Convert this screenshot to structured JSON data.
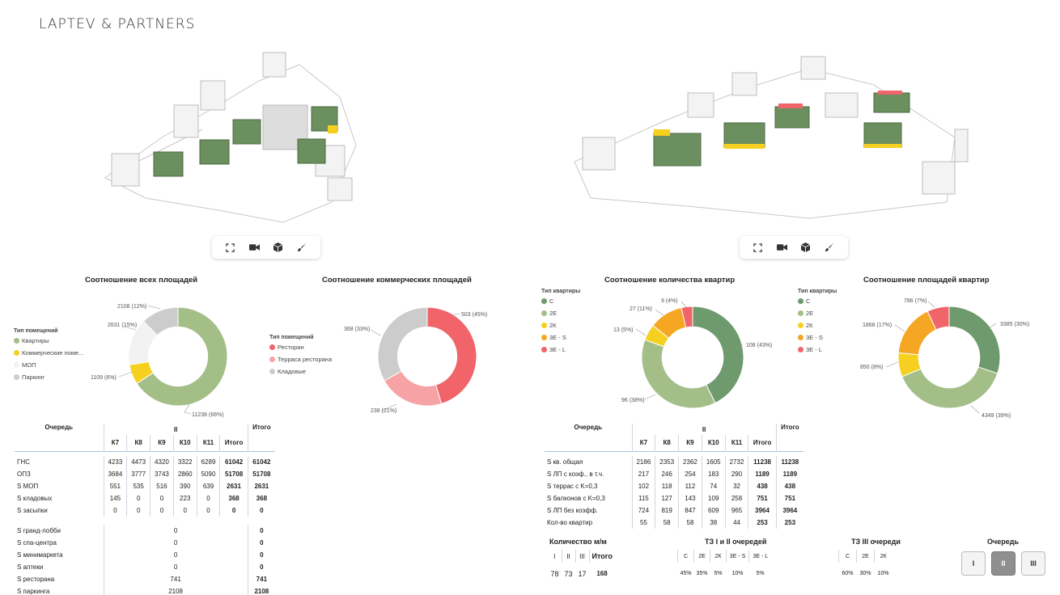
{
  "brand": {
    "logo": "LAPTEV & PARTNERS"
  },
  "colors": {
    "green_dark": "#6e9a6e",
    "green_light": "#a3bf87",
    "yellow": "#f5d020",
    "orange": "#f5a623",
    "red": "#f0646a",
    "pink": "#f7a3a6",
    "grey": "#cccccc",
    "white_grey": "#f2f2f2"
  },
  "toolbar": {
    "icons": [
      "expand-icon",
      "camera-icon",
      "cube-icon",
      "brush-icon"
    ]
  },
  "charts": {
    "all_areas": {
      "title": "Соотношение всех площадей",
      "legend_title": "Тип помещений",
      "legend": [
        "Квартиры",
        "Коммерческие поме...",
        "МОП",
        "Паркинг"
      ],
      "labels": [
        "2108 (12%)",
        "2631 (15%)",
        "1109 (6%)",
        "11238 (66%)"
      ]
    },
    "commercial": {
      "title": "Соотношение коммерческих площадей",
      "legend_title": "Тип помещений",
      "legend": [
        "Ресторан",
        "Терраса ресторана",
        "Кладовые"
      ],
      "labels": [
        "503 (45%)",
        "368 (33%)",
        "238 (21%)"
      ]
    },
    "apt_count": {
      "title": "Соотношение количества квартир",
      "legend_title": "Тип квартиры",
      "legend": [
        "С",
        "2Е",
        "2К",
        "3Е - S",
        "3Е - L"
      ],
      "labels": [
        "9 (4%)",
        "27 (11%)",
        "13 (5%)",
        "108 (43%)",
        "96 (38%)"
      ]
    },
    "apt_area": {
      "title": "Соотношение площадей квартир",
      "legend_title": "Тип квартиры",
      "legend": [
        "С",
        "2Е",
        "2К",
        "3Е - S",
        "3Е - L"
      ],
      "labels": [
        "786 (7%)",
        "3385 (30%)",
        "1868 (17%)",
        "850 (8%)",
        "4349 (39%)"
      ]
    }
  },
  "chart_data": [
    {
      "type": "pie",
      "title": "Соотношение всех площадей",
      "categories": [
        "Квартиры",
        "Коммерческие поме...",
        "МОП",
        "Паркинг"
      ],
      "values": [
        11238,
        1109,
        2631,
        2108
      ]
    },
    {
      "type": "pie",
      "title": "Соотношение коммерческих площадей",
      "categories": [
        "Ресторан",
        "Терраса ресторана",
        "Кладовые"
      ],
      "values": [
        503,
        238,
        368
      ]
    },
    {
      "type": "pie",
      "title": "Соотношение количества квартир",
      "categories": [
        "С",
        "2Е",
        "2К",
        "3Е - S",
        "3Е - L"
      ],
      "values": [
        108,
        96,
        13,
        27,
        9
      ]
    },
    {
      "type": "pie",
      "title": "Соотношение площадей квартир",
      "categories": [
        "С",
        "2Е",
        "2К",
        "3Е - S",
        "3Е - L"
      ],
      "values": [
        3385,
        4349,
        850,
        1868,
        786
      ]
    }
  ],
  "table_left": {
    "h_queue": "Очередь",
    "h_stage": "II",
    "h_total": "Итого",
    "cols": [
      "К7",
      "К8",
      "К9",
      "К10",
      "К11",
      "Итого"
    ],
    "rows": [
      {
        "label": "ГНС",
        "v": [
          "4233",
          "4473",
          "4320",
          "3322",
          "6289",
          "61042"
        ],
        "t": "61042"
      },
      {
        "label": "ОПЗ",
        "v": [
          "3684",
          "3777",
          "3743",
          "2860",
          "5090",
          "51708"
        ],
        "t": "51708"
      },
      {
        "label": "S МОП",
        "v": [
          "551",
          "535",
          "516",
          "390",
          "639",
          "2631"
        ],
        "t": "2631"
      },
      {
        "label": "S кладовых",
        "v": [
          "145",
          "0",
          "0",
          "223",
          "0",
          "368"
        ],
        "t": "368"
      },
      {
        "label": "S засыпки",
        "v": [
          "0",
          "0",
          "0",
          "0",
          "0",
          "0"
        ],
        "t": "0"
      }
    ],
    "rows2": [
      {
        "label": "S гранд-лобби",
        "v": "0",
        "t": "0"
      },
      {
        "label": "S спа-центра",
        "v": "0",
        "t": "0"
      },
      {
        "label": "S минимаркета",
        "v": "0",
        "t": "0"
      },
      {
        "label": "S аптеки",
        "v": "0",
        "t": "0"
      },
      {
        "label": "S ресторана",
        "v": "741",
        "t": "741"
      },
      {
        "label": "S паркинга",
        "v": "2108",
        "t": "2108"
      }
    ]
  },
  "table_right": {
    "h_queue": "Очередь",
    "h_stage": "II",
    "h_total": "Итого",
    "cols": [
      "К7",
      "К8",
      "К9",
      "К10",
      "К11",
      "Итого"
    ],
    "rows": [
      {
        "label": "S кв. общая",
        "v": [
          "2186",
          "2353",
          "2362",
          "1605",
          "2732",
          "11238"
        ],
        "t": "11238"
      },
      {
        "label": "S ЛП с коэф., в т.ч.",
        "v": [
          "217",
          "246",
          "254",
          "183",
          "290",
          "1189"
        ],
        "t": "1189"
      },
      {
        "label": "S террас с K=0,3",
        "v": [
          "102",
          "118",
          "112",
          "74",
          "32",
          "438"
        ],
        "t": "438"
      },
      {
        "label": "S балконов с K=0,3",
        "v": [
          "115",
          "127",
          "143",
          "109",
          "258",
          "751"
        ],
        "t": "751"
      },
      {
        "label": "S ЛП без коэфф.",
        "v": [
          "724",
          "819",
          "847",
          "609",
          "965",
          "3964"
        ],
        "t": "3964"
      },
      {
        "label": "Кол-во квартир",
        "v": [
          "55",
          "58",
          "58",
          "38",
          "44",
          "253"
        ],
        "t": "253"
      }
    ]
  },
  "parking": {
    "title": "Количество м/м",
    "cols": [
      "I",
      "II",
      "III",
      "Итого"
    ],
    "vals": [
      "78",
      "73",
      "17",
      "168"
    ]
  },
  "tz12": {
    "title": "ТЗ I и II очередей",
    "cols": [
      "С",
      "2Е",
      "2К",
      "3Е - S",
      "3Е - L"
    ],
    "vals": [
      "45%",
      "35%",
      "5%",
      "10%",
      "5%"
    ]
  },
  "tz3": {
    "title": "ТЗ III очереди",
    "cols": [
      "С",
      "2Е",
      "2К"
    ],
    "vals": [
      "60%",
      "30%",
      "10%"
    ]
  },
  "queue": {
    "title": "Очередь",
    "buttons": [
      "I",
      "II",
      "III"
    ],
    "active": "II"
  }
}
